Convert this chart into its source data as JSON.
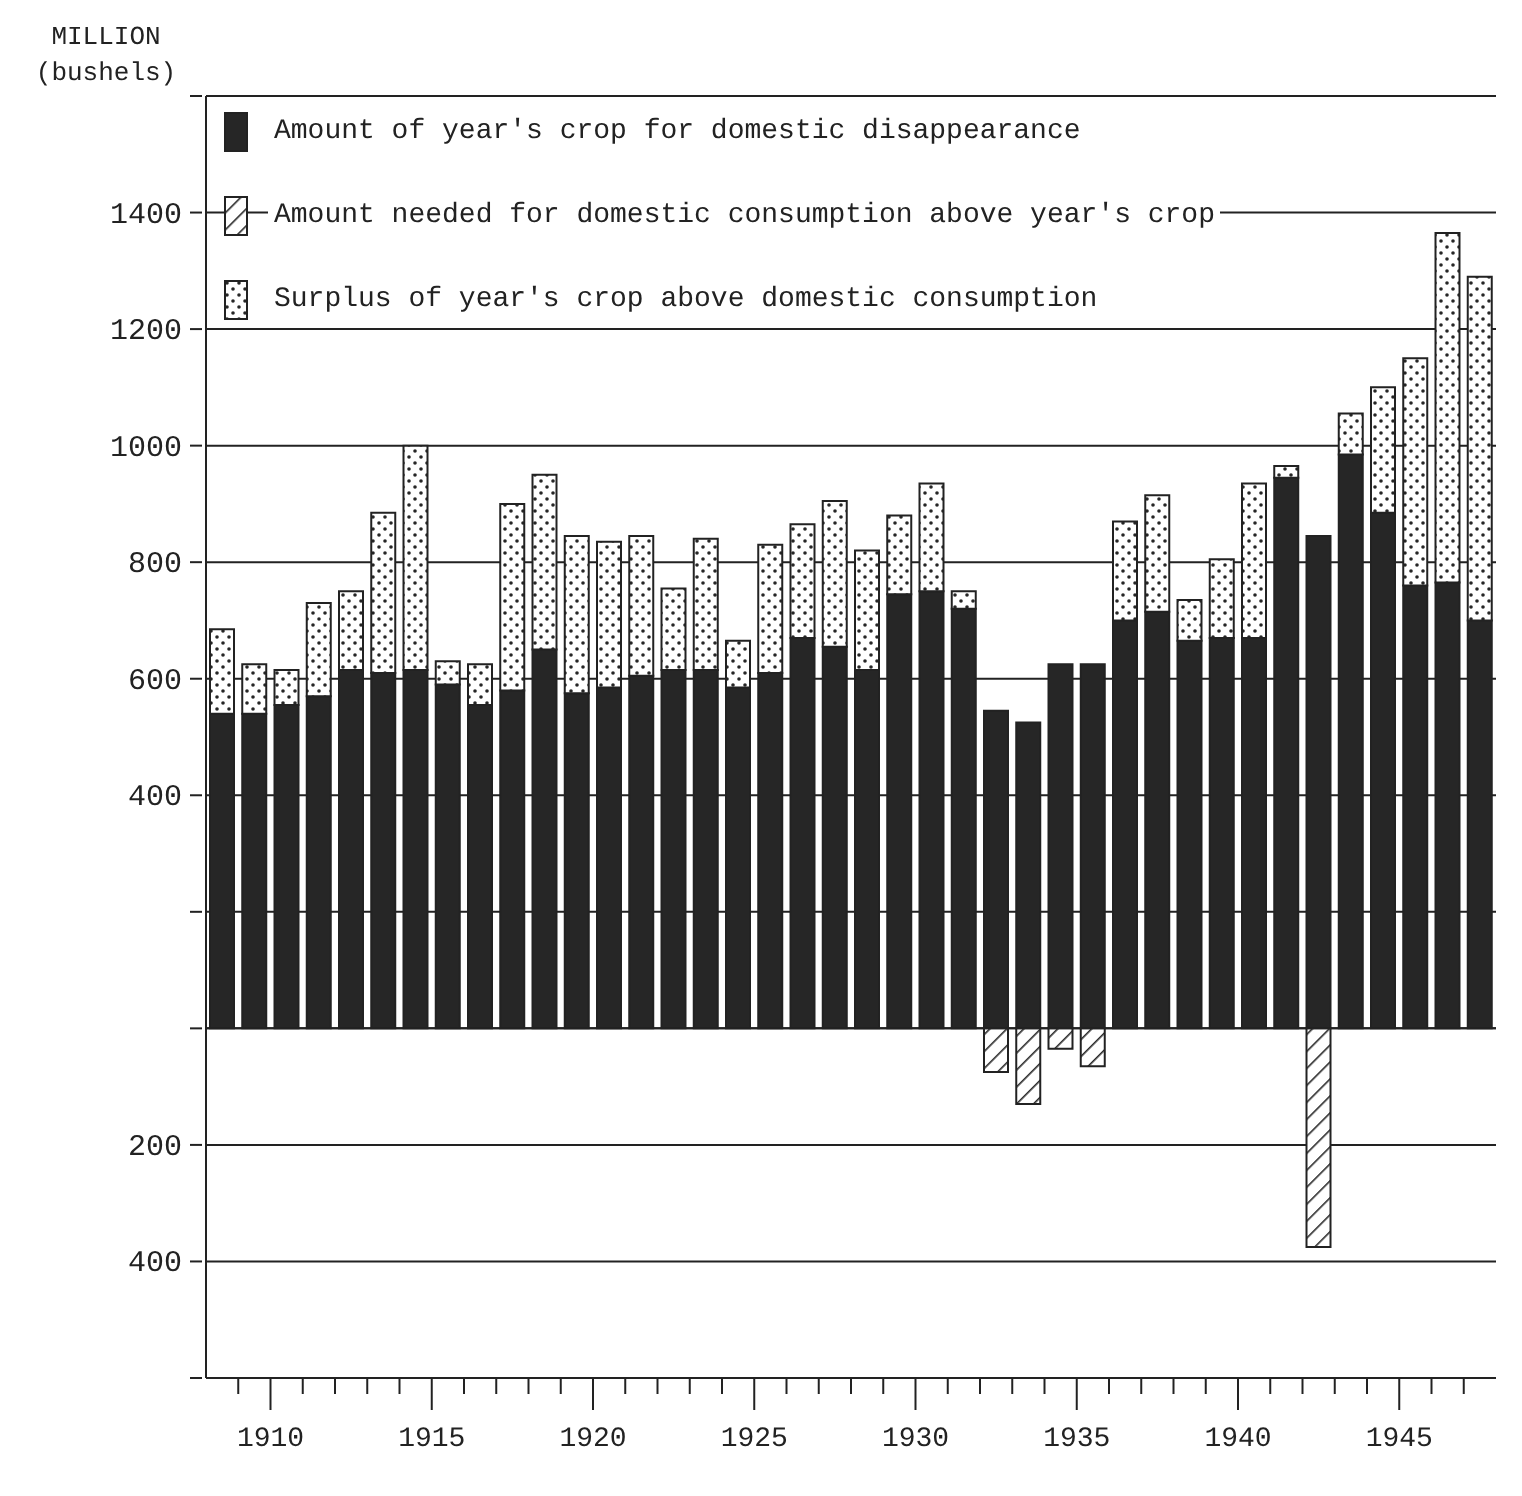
{
  "chart_data": {
    "type": "bar",
    "stacked": true,
    "ylabel": "MILLION (bushels)",
    "x": [
      1908.5,
      1909.5,
      1910.5,
      1911.5,
      1912.5,
      1913.5,
      1914.5,
      1915.5,
      1916.5,
      1917.5,
      1918.5,
      1919.5,
      1920.5,
      1921.5,
      1922.5,
      1923.5,
      1924.5,
      1925.5,
      1926.5,
      1927.5,
      1928.5,
      1929.5,
      1930.5,
      1931.5,
      1932.5,
      1933.5,
      1934.5,
      1935.5,
      1936.5,
      1937.5,
      1938.5,
      1939.5,
      1940.5,
      1941.5,
      1942.5,
      1943.5,
      1944.5,
      1945.5,
      1946.5,
      1947.5
    ],
    "series": [
      {
        "name": "Amount of year's crop for domestic disappearance",
        "color": "#262626",
        "values": [
          540,
          540,
          555,
          570,
          615,
          610,
          615,
          590,
          555,
          580,
          650,
          575,
          585,
          605,
          615,
          615,
          585,
          610,
          670,
          655,
          615,
          745,
          750,
          720,
          545,
          525,
          625,
          625,
          700,
          715,
          665,
          670,
          670,
          945,
          845,
          985,
          885,
          760,
          765,
          700
        ]
      },
      {
        "name": "Amount needed for domestic consumption above year's crop",
        "color": "#262626",
        "values": [
          null,
          null,
          null,
          null,
          null,
          null,
          null,
          null,
          null,
          null,
          null,
          null,
          null,
          null,
          null,
          null,
          null,
          null,
          null,
          null,
          null,
          null,
          null,
          null,
          -75,
          -130,
          -35,
          -65,
          null,
          null,
          null,
          null,
          null,
          null,
          -375,
          null,
          null,
          null,
          null,
          null
        ]
      },
      {
        "name": "Surplus of year's crop above domestic consumption",
        "color": "#262626",
        "values": [
          145,
          85,
          60,
          160,
          135,
          275,
          385,
          40,
          70,
          320,
          300,
          270,
          250,
          240,
          140,
          225,
          80,
          220,
          195,
          250,
          205,
          135,
          185,
          30,
          null,
          null,
          null,
          null,
          170,
          200,
          70,
          135,
          265,
          20,
          null,
          70,
          215,
          390,
          600,
          590
        ]
      }
    ],
    "xlim": [
      1908,
      1948
    ],
    "xticks": [
      {
        "value": 1909,
        "label": null
      },
      1910,
      {
        "value": 1911,
        "label": null
      },
      {
        "value": 1912,
        "label": null
      },
      {
        "value": 1913,
        "label": null
      },
      {
        "value": 1914,
        "label": null
      },
      1915,
      {
        "value": 1916,
        "label": null
      },
      {
        "value": 1917,
        "label": null
      },
      {
        "value": 1918,
        "label": null
      },
      {
        "value": 1919,
        "label": null
      },
      1920,
      {
        "value": 1921,
        "label": null
      },
      {
        "value": 1922,
        "label": null
      },
      {
        "value": 1923,
        "label": null
      },
      {
        "value": 1924,
        "label": null
      },
      1925,
      {
        "value": 1926,
        "label": null
      },
      {
        "value": 1927,
        "label": null
      },
      {
        "value": 1928,
        "label": null
      },
      {
        "value": 1929,
        "label": null
      },
      1930,
      {
        "value": 1931,
        "label": null
      },
      {
        "value": 1932,
        "label": null
      },
      {
        "value": 1933,
        "label": null
      },
      {
        "value": 1934,
        "label": null
      },
      1935,
      {
        "value": 1936,
        "label": null
      },
      {
        "value": 1937,
        "label": null
      },
      {
        "value": 1938,
        "label": null
      },
      {
        "value": 1939,
        "label": null
      },
      1940,
      {
        "value": 1941,
        "label": null
      },
      {
        "value": 1942,
        "label": null
      },
      {
        "value": 1943,
        "label": null
      },
      {
        "value": 1944,
        "label": null
      },
      1945,
      {
        "value": 1946,
        "label": null
      },
      {
        "value": 1947,
        "label": null
      }
    ],
    "ylim": [
      -600,
      1600
    ],
    "yticks": [
      {
        "value": -600,
        "label": null
      },
      {
        "value": -400,
        "label": "400"
      },
      {
        "value": -200,
        "label": "200"
      },
      {
        "value": 0,
        "label": null
      },
      {
        "value": 200,
        "label": null
      },
      400,
      600,
      800,
      1000,
      1200,
      1400,
      {
        "value": 1600,
        "label": null
      }
    ],
    "grid": "y",
    "legend": "top left"
  }
}
